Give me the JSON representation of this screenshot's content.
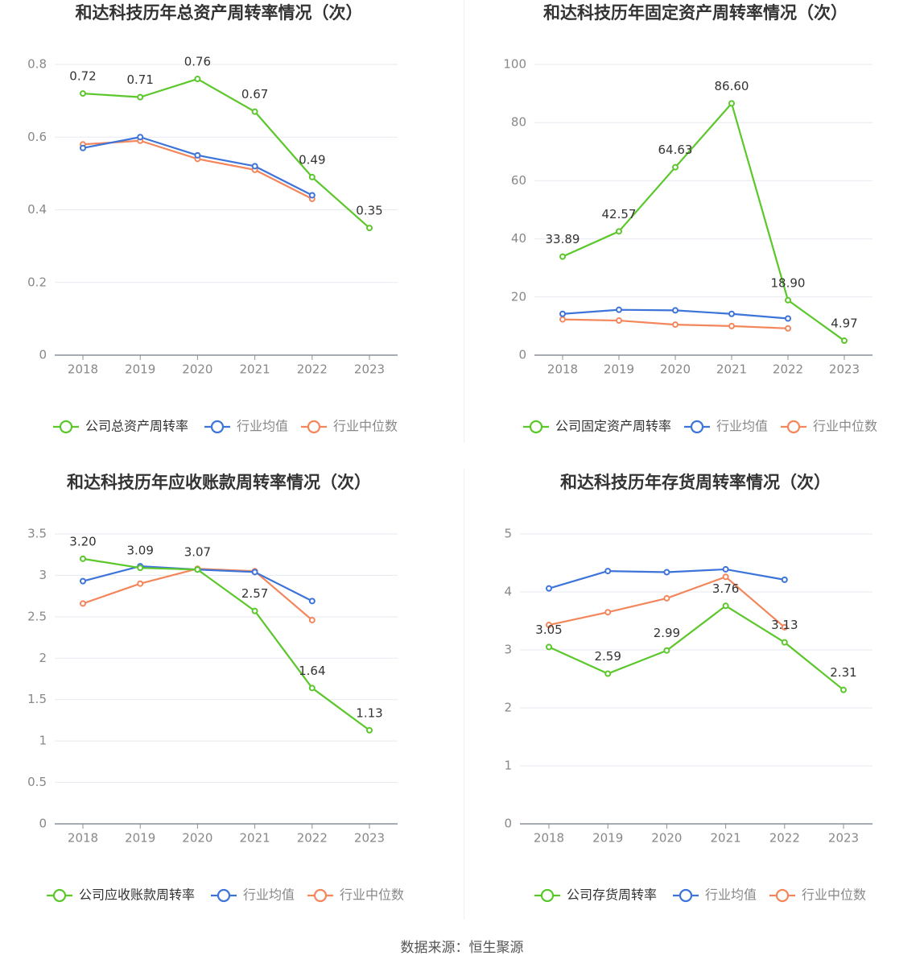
{
  "colors": {
    "company": "#5bc72b",
    "industry_avg": "#3d74d9",
    "industry_median": "#f3865b",
    "grid": "#e6e9f0",
    "axis": "#8a8f99",
    "tick_text": "#888888",
    "label_text": "#333333",
    "title_text": "#333333"
  },
  "source": "数据来源：恒生聚源",
  "chart_data": [
    {
      "type": "line",
      "title": "和达科技历年总资产周转率情况（次）",
      "categories": [
        "2018",
        "2019",
        "2020",
        "2021",
        "2022",
        "2023"
      ],
      "ylim": [
        0,
        0.8
      ],
      "yticks": [
        0,
        0.2,
        0.4,
        0.6,
        0.8
      ],
      "ytick_labels": [
        "0",
        "0.2",
        "0.4",
        "0.6",
        "0.8"
      ],
      "series": [
        {
          "name": "公司总资产周转率",
          "role": "company",
          "values": [
            0.72,
            0.71,
            0.76,
            0.67,
            0.49,
            0.35
          ],
          "labels": [
            "0.72",
            "0.71",
            "0.76",
            "0.67",
            "0.49",
            "0.35"
          ]
        },
        {
          "name": "行业均值",
          "role": "industry_avg",
          "values": [
            0.57,
            0.6,
            0.55,
            0.52,
            0.44,
            null
          ]
        },
        {
          "name": "行业中位数",
          "role": "industry_median",
          "values": [
            0.58,
            0.59,
            0.54,
            0.51,
            0.43,
            null
          ]
        }
      ]
    },
    {
      "type": "line",
      "title": "和达科技历年固定资产周转率情况（次）",
      "categories": [
        "2018",
        "2019",
        "2020",
        "2021",
        "2022",
        "2023"
      ],
      "ylim": [
        0,
        100
      ],
      "yticks": [
        0,
        20,
        40,
        60,
        80,
        100
      ],
      "ytick_labels": [
        "0",
        "20",
        "40",
        "60",
        "80",
        "100"
      ],
      "series": [
        {
          "name": "公司固定资产周转率",
          "role": "company",
          "values": [
            33.89,
            42.57,
            64.63,
            86.6,
            18.9,
            4.97
          ],
          "labels": [
            "33.89",
            "42.57",
            "64.63",
            "86.60",
            "18.90",
            "4.97"
          ]
        },
        {
          "name": "行业均值",
          "role": "industry_avg",
          "values": [
            14.2,
            15.6,
            15.4,
            14.2,
            12.6,
            null
          ]
        },
        {
          "name": "行业中位数",
          "role": "industry_median",
          "values": [
            12.3,
            11.9,
            10.5,
            10.0,
            9.2,
            null
          ]
        }
      ]
    },
    {
      "type": "line",
      "title": "和达科技历年应收账款周转率情况（次）",
      "categories": [
        "2018",
        "2019",
        "2020",
        "2021",
        "2022",
        "2023"
      ],
      "ylim": [
        0,
        3.5
      ],
      "yticks": [
        0,
        0.5,
        1,
        1.5,
        2,
        2.5,
        3,
        3.5
      ],
      "ytick_labels": [
        "0",
        "0.5",
        "1",
        "1.5",
        "2",
        "2.5",
        "3",
        "3.5"
      ],
      "series": [
        {
          "name": "公司应收账款周转率",
          "role": "company",
          "values": [
            3.2,
            3.09,
            3.07,
            2.57,
            1.64,
            1.13
          ],
          "labels": [
            "3.20",
            "3.09",
            "3.07",
            "2.57",
            "1.64",
            "1.13"
          ]
        },
        {
          "name": "行业均值",
          "role": "industry_avg",
          "values": [
            2.93,
            3.11,
            3.07,
            3.04,
            2.69,
            null
          ]
        },
        {
          "name": "行业中位数",
          "role": "industry_median",
          "values": [
            2.66,
            2.9,
            3.08,
            3.05,
            2.46,
            null
          ]
        }
      ]
    },
    {
      "type": "line",
      "title": "和达科技历年存货周转率情况（次）",
      "categories": [
        "2018",
        "2019",
        "2020",
        "2021",
        "2022",
        "2023"
      ],
      "ylim": [
        0,
        5
      ],
      "yticks": [
        0,
        1,
        2,
        3,
        4,
        5
      ],
      "ytick_labels": [
        "0",
        "1",
        "2",
        "3",
        "4",
        "5"
      ],
      "series": [
        {
          "name": "公司存货周转率",
          "role": "company",
          "values": [
            3.05,
            2.59,
            2.99,
            3.76,
            3.13,
            2.31
          ],
          "labels": [
            "3.05",
            "2.59",
            "2.99",
            "3.76",
            "3.13",
            "2.31"
          ]
        },
        {
          "name": "行业均值",
          "role": "industry_avg",
          "values": [
            4.06,
            4.36,
            4.34,
            4.39,
            4.21,
            null
          ]
        },
        {
          "name": "行业中位数",
          "role": "industry_median",
          "values": [
            3.43,
            3.65,
            3.89,
            4.26,
            3.39,
            null
          ]
        }
      ]
    }
  ]
}
